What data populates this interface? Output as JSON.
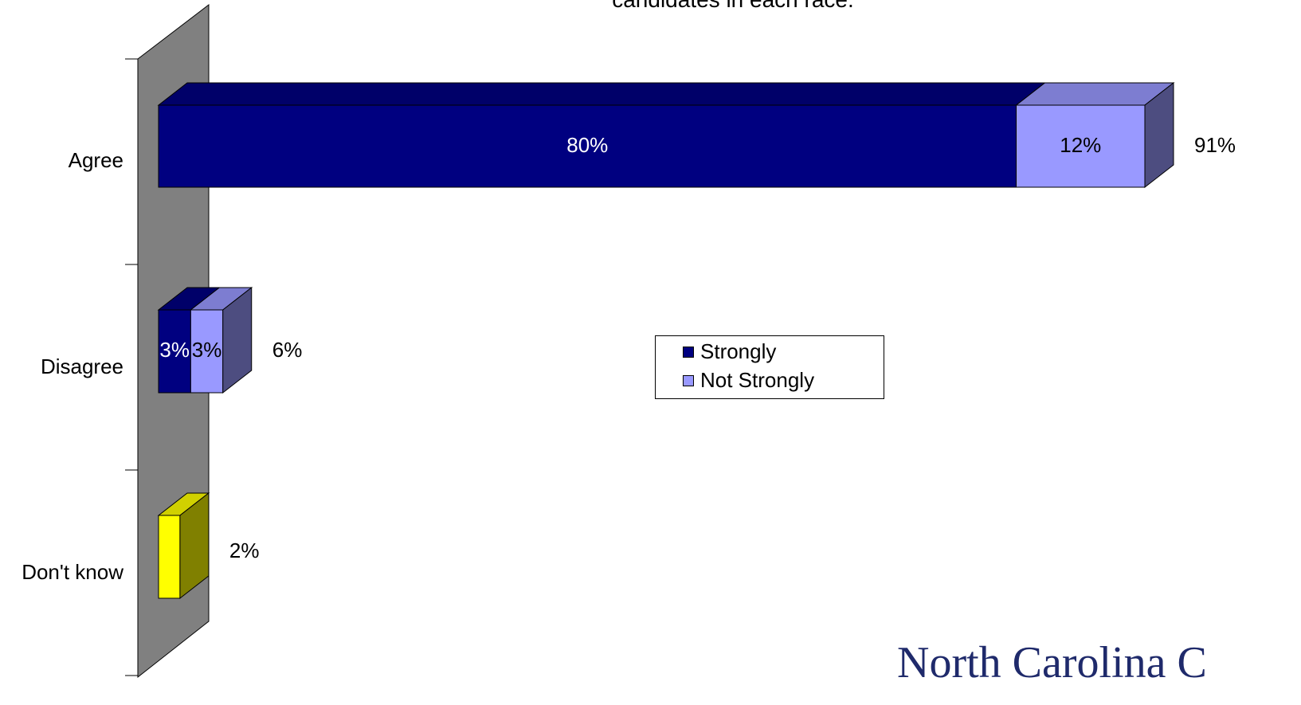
{
  "title": "candidates in each race.",
  "logo_text": "North Carolina C",
  "colors": {
    "strongly": "#000080",
    "not_strongly": "#9999ff",
    "dont_know": "#ffff00",
    "wall": "#808080"
  },
  "legend": {
    "strongly_label": "Strongly",
    "not_strongly_label": "Not Strongly"
  },
  "chart_data": {
    "type": "bar",
    "orientation": "horizontal",
    "stacked": true,
    "three_d": true,
    "categories": [
      "Agree",
      "Disagree",
      "Don't know"
    ],
    "series": [
      {
        "name": "Strongly",
        "values": [
          80,
          3,
          null
        ],
        "labels": [
          "80%",
          "3%",
          ""
        ]
      },
      {
        "name": "Not Strongly",
        "values": [
          12,
          3,
          null
        ],
        "labels": [
          "12%",
          "3%",
          ""
        ]
      },
      {
        "values": [
          null,
          null,
          2
        ],
        "labels": [
          "",
          "",
          ""
        ]
      }
    ],
    "totals": [
      91,
      6,
      2
    ],
    "total_labels": [
      "91%",
      "6%",
      "2%"
    ],
    "xlim": [
      0,
      92
    ],
    "legend_position": "center-right",
    "grid": false
  }
}
